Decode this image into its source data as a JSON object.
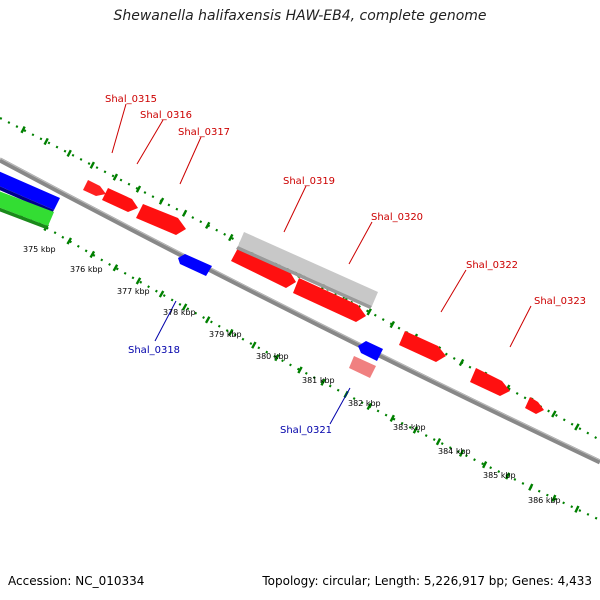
{
  "title": "Shewanella halifaxensis HAW-EB4, complete genome",
  "footer": {
    "accession": "Accession: NC_010334",
    "summary": "Topology: circular; Length: 5,226,917 bp; Genes: 4,433"
  },
  "colors": {
    "forward_gene": "#ff0000",
    "reverse_gene": "#0000ff",
    "pseudogene_or_faded": "#f08080",
    "grey_feature": "#c0c0c0",
    "green_feature": "#22cc22",
    "backbone": "#888888",
    "tick_marks": "#008000",
    "label_forward": "#cc0000",
    "label_reverse": "#0000aa"
  },
  "scale_ticks": [
    {
      "kbp": 375,
      "label": "375 kbp"
    },
    {
      "kbp": 376,
      "label": "376 kbp"
    },
    {
      "kbp": 377,
      "label": "377 kbp"
    },
    {
      "kbp": 378,
      "label": "378 kbp"
    },
    {
      "kbp": 379,
      "label": "379 kbp"
    },
    {
      "kbp": 380,
      "label": "380 kbp"
    },
    {
      "kbp": 381,
      "label": "381 kbp"
    },
    {
      "kbp": 382,
      "label": "382 kbp"
    },
    {
      "kbp": 383,
      "label": "383 kbp"
    },
    {
      "kbp": 384,
      "label": "384 kbp"
    },
    {
      "kbp": 385,
      "label": "385 kbp"
    },
    {
      "kbp": 386,
      "label": "386 kbp"
    }
  ],
  "gene_labels": [
    {
      "name": "Shal_0315",
      "strand": "forward"
    },
    {
      "name": "Shal_0316",
      "strand": "forward"
    },
    {
      "name": "Shal_0317",
      "strand": "forward"
    },
    {
      "name": "Shal_0318",
      "strand": "reverse"
    },
    {
      "name": "Shal_0319",
      "strand": "forward"
    },
    {
      "name": "Shal_0320",
      "strand": "forward"
    },
    {
      "name": "Shal_0321",
      "strand": "reverse"
    },
    {
      "name": "Shal_0322",
      "strand": "forward"
    },
    {
      "name": "Shal_0323",
      "strand": "forward"
    }
  ]
}
